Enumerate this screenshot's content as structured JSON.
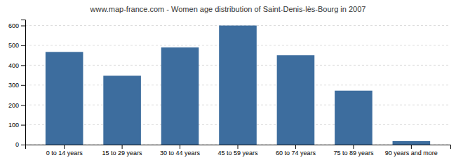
{
  "chart_data": {
    "type": "bar",
    "title": "www.map-france.com - Women age distribution of Saint-Denis-lès-Bourg in 2007",
    "categories": [
      "0 to 14 years",
      "15 to 29 years",
      "30 to 44 years",
      "45 to 59 years",
      "60 to 74 years",
      "75 to 89 years",
      "90 years and more"
    ],
    "values": [
      467,
      347,
      490,
      600,
      450,
      272,
      18
    ],
    "color": "#3d6d9e",
    "ylim": [
      0,
      630
    ],
    "yticks": [
      0,
      100,
      200,
      300,
      400,
      500,
      600
    ],
    "grid": true
  }
}
